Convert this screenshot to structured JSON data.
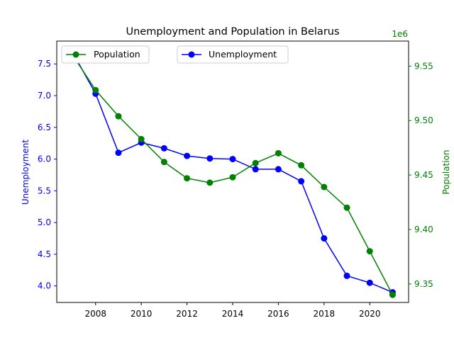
{
  "chart_data": {
    "type": "line",
    "title": "Unemployment and Population in Belarus",
    "x": [
      2007,
      2008,
      2009,
      2010,
      2011,
      2012,
      2013,
      2014,
      2015,
      2016,
      2017,
      2018,
      2019,
      2020,
      2021
    ],
    "x_ticks": [
      "2008",
      "2010",
      "2012",
      "2014",
      "2016",
      "2018",
      "2020"
    ],
    "xlim": [
      2006.3,
      2021.7
    ],
    "left_axis": {
      "label": "Unemployment",
      "color": "#0000ff",
      "ylim": [
        3.74,
        7.86
      ],
      "ticks": [
        "4.0",
        "4.5",
        "5.0",
        "5.5",
        "6.0",
        "6.5",
        "7.0",
        "7.5"
      ]
    },
    "right_axis": {
      "label": "Population",
      "color": "#008000",
      "ylim": [
        9.333,
        9.573
      ],
      "ticks": [
        "9.35",
        "9.40",
        "9.45",
        "9.50",
        "9.55"
      ],
      "offset_text": "1e6"
    },
    "series": [
      {
        "name": "Unemployment",
        "axis": "left",
        "color": "#0000ff",
        "values": [
          7.68,
          7.03,
          6.1,
          6.26,
          6.17,
          6.05,
          6.01,
          6.0,
          5.84,
          5.84,
          5.65,
          4.75,
          4.16,
          4.05,
          3.9
        ]
      },
      {
        "name": "Population",
        "axis": "right",
        "color": "#008000",
        "values": [
          9.56,
          9.528,
          9.504,
          9.483,
          9.462,
          9.447,
          9.443,
          9.448,
          9.461,
          9.47,
          9.459,
          9.439,
          9.42,
          9.38,
          9.34
        ]
      }
    ],
    "legends": [
      {
        "placement": "upper-left",
        "entries": [
          "Population"
        ]
      },
      {
        "placement": "upper-center",
        "entries": [
          "Unemployment"
        ]
      }
    ],
    "grid": false
  }
}
